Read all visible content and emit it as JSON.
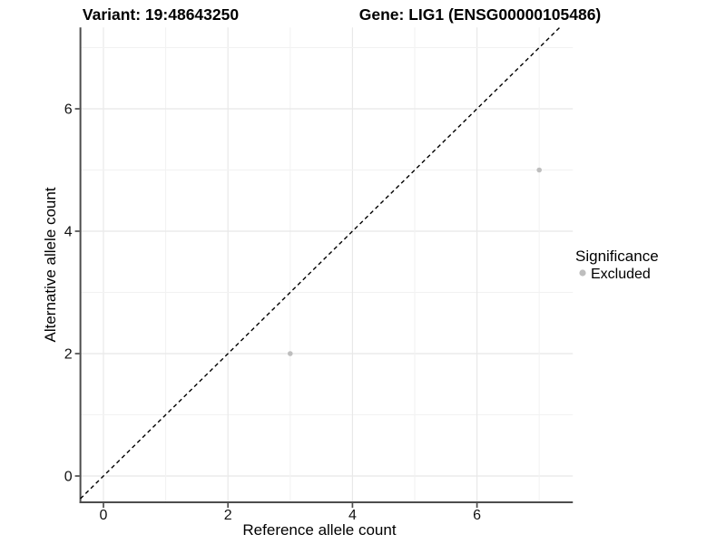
{
  "titles": {
    "variant": "Variant: 19:48643250",
    "gene": "Gene: LIG1 (ENSG00000105486)"
  },
  "axes": {
    "x_label": "Reference allele count",
    "y_label": "Alternative allele count"
  },
  "legend": {
    "title": "Significance",
    "items": [
      {
        "label": "Excluded",
        "color": "#bebebe"
      }
    ]
  },
  "colors": {
    "point": "#bebebe",
    "axis_line": "#4d4d4d",
    "grid_major": "#e8e8e8",
    "grid_minor": "#f2f2f2",
    "reference_line": "#000000",
    "text": "#000000"
  },
  "chart_data": {
    "type": "scatter",
    "title_left": "Variant: 19:48643250",
    "title_right": "Gene: LIG1 (ENSG00000105486)",
    "xlabel": "Reference allele count",
    "ylabel": "Alternative allele count",
    "xlim": [
      -0.37,
      7.54
    ],
    "ylim": [
      -0.43,
      7.33
    ],
    "x_major_ticks": [
      0,
      2,
      4,
      6
    ],
    "y_major_ticks": [
      0,
      2,
      4,
      6
    ],
    "grid_ticks": [
      0,
      1,
      2,
      3,
      4,
      5,
      6,
      7
    ],
    "grid": "major at even integers, minor at odd integers",
    "legend_position": "right",
    "series": [
      {
        "name": "Excluded",
        "color": "#bebebe",
        "points": [
          {
            "x": 3,
            "y": 2
          },
          {
            "x": 7,
            "y": 5
          }
        ]
      }
    ],
    "reference_line": {
      "type": "identity",
      "equation": "y = x",
      "style": "dashed",
      "color": "#000000"
    }
  }
}
